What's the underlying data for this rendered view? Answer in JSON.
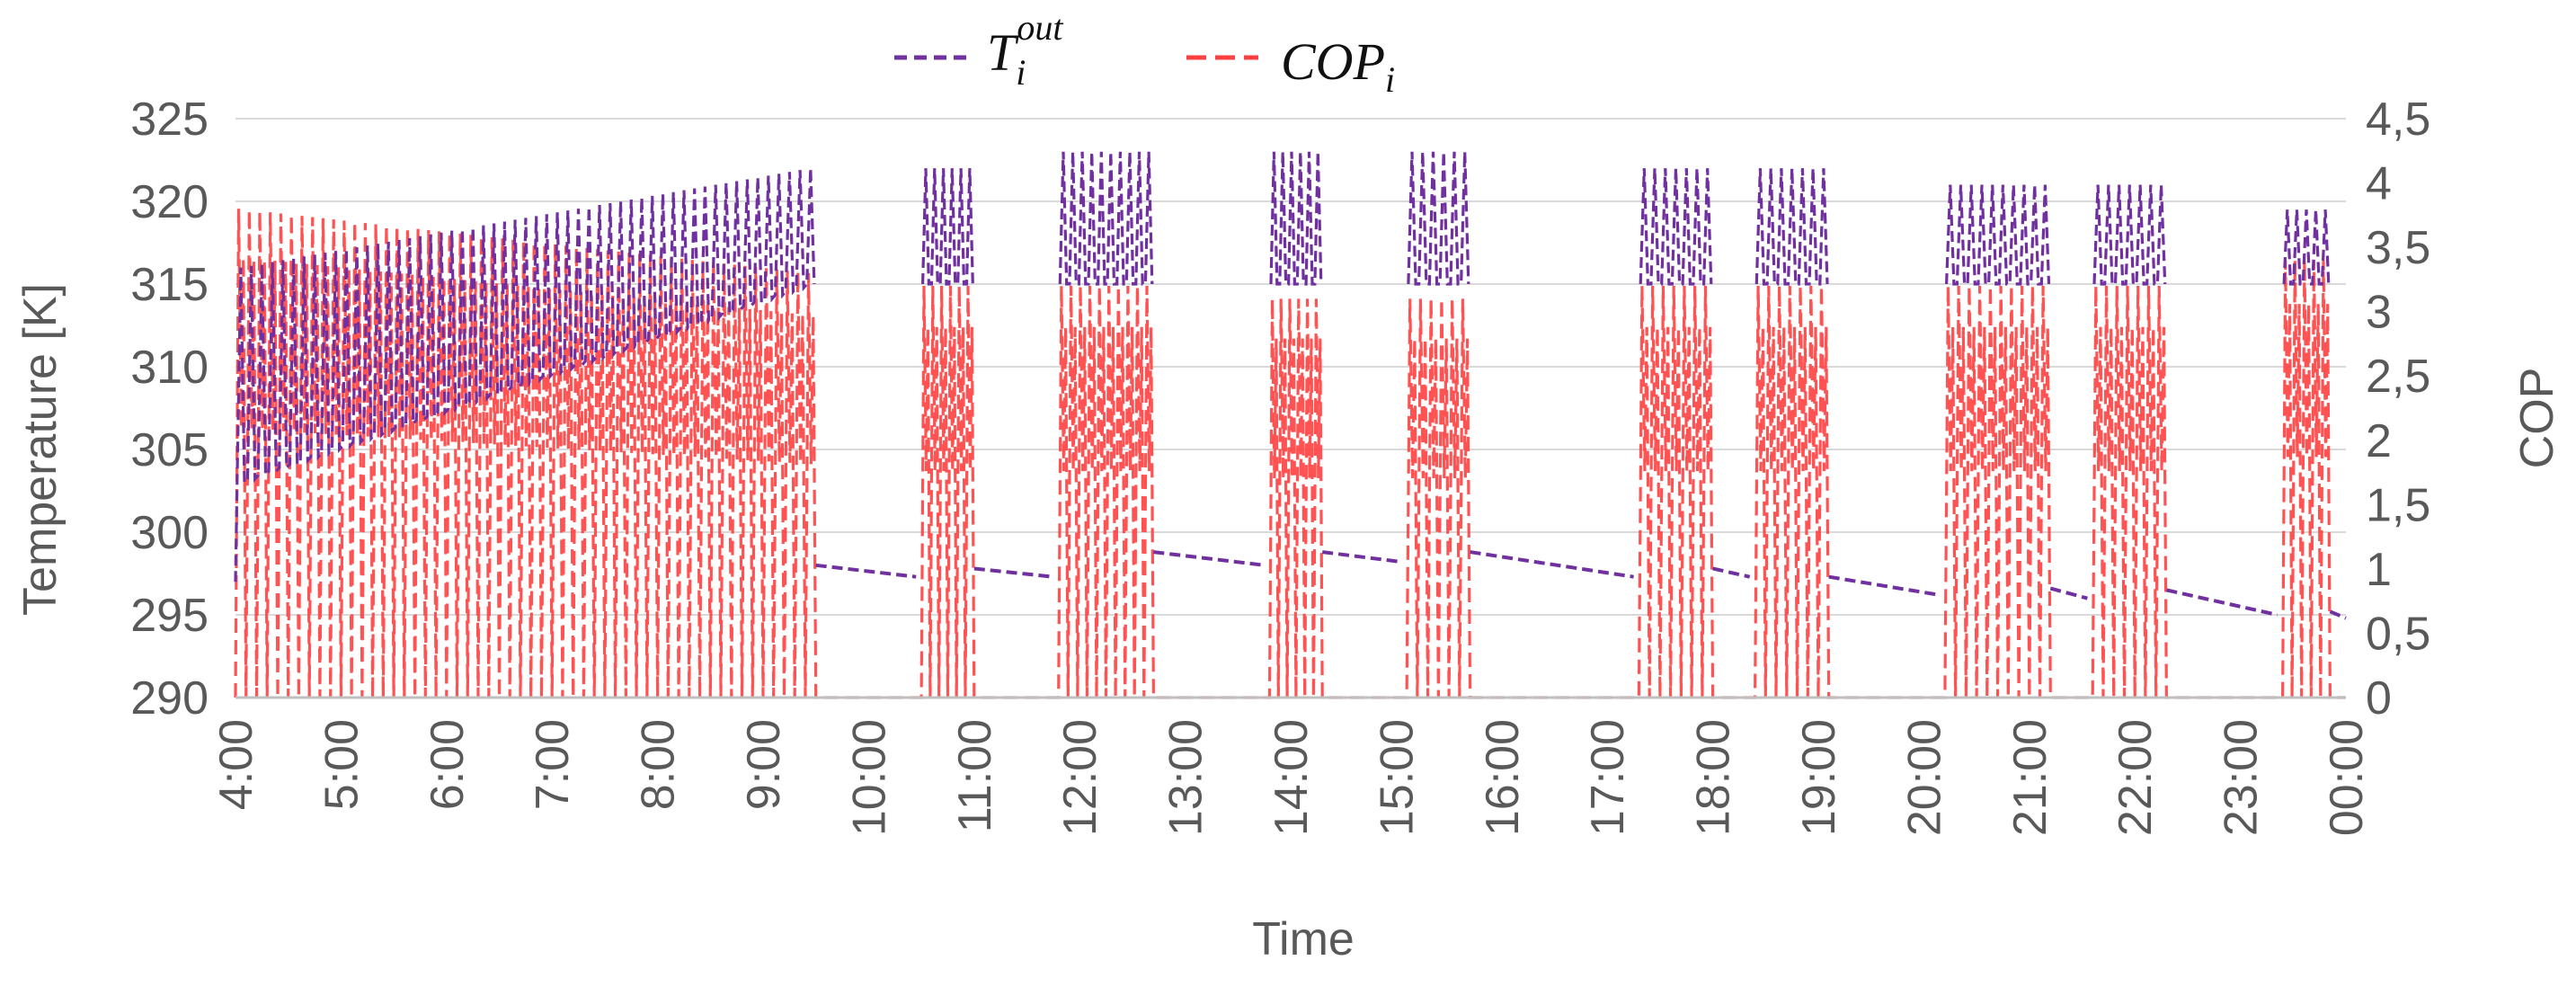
{
  "chart_data": {
    "type": "line",
    "title": "",
    "xlabel": "Time",
    "ylabel": "Temperature [K]",
    "y2label": "COP",
    "x_ticks": [
      "4:00",
      "5:00",
      "6:00",
      "7:00",
      "8:00",
      "9:00",
      "10:00",
      "11:00",
      "12:00",
      "13:00",
      "14:00",
      "15:00",
      "16:00",
      "17:00",
      "18:00",
      "19:00",
      "20:00",
      "21:00",
      "22:00",
      "23:00",
      "00:00"
    ],
    "x_range_hours": [
      4,
      24
    ],
    "ylim": [
      290,
      325
    ],
    "y_ticks": [
      290,
      295,
      300,
      305,
      310,
      315,
      320,
      325
    ],
    "y2lim": [
      0,
      4.5
    ],
    "y2_ticks": [
      "0",
      "0,5",
      "1",
      "1,5",
      "2",
      "2,5",
      "3",
      "3,5",
      "4",
      "4,5"
    ],
    "grid": true,
    "legend_position": "top-center",
    "legend": [
      {
        "base": "T",
        "sub": "i",
        "sup": "out",
        "style": "dashed",
        "color": "#7030a0"
      },
      {
        "base": "COP",
        "sub": "i",
        "style": "dashed",
        "color": "#ff4040"
      }
    ],
    "series": [
      {
        "name": "T_i^out",
        "axis": "left",
        "color": "#7030a0",
        "operating_blocks": [
          {
            "start": 4.0,
            "end": 9.5,
            "low_start": 303,
            "low_end": 315,
            "high_start": 316,
            "high_end": 322,
            "cycles": 55
          },
          {
            "start": 10.5,
            "end": 11.0,
            "low": 315,
            "high": 322,
            "cycles": 6
          },
          {
            "start": 11.8,
            "end": 12.7,
            "low": 315,
            "high": 323,
            "cycles": 10
          },
          {
            "start": 13.8,
            "end": 14.3,
            "low": 315,
            "high": 323,
            "cycles": 6
          },
          {
            "start": 15.1,
            "end": 15.7,
            "low": 315,
            "high": 323,
            "cycles": 6
          },
          {
            "start": 17.3,
            "end": 18.0,
            "low": 315,
            "high": 322,
            "cycles": 7
          },
          {
            "start": 18.4,
            "end": 19.1,
            "low": 315,
            "high": 322,
            "cycles": 7
          },
          {
            "start": 20.2,
            "end": 21.2,
            "low": 315,
            "high": 321,
            "cycles": 10
          },
          {
            "start": 21.6,
            "end": 22.3,
            "low": 315,
            "high": 321,
            "cycles": 7
          },
          {
            "start": 23.4,
            "end": 23.85,
            "low": 315,
            "high": 319.5,
            "cycles": 5
          }
        ],
        "idle_segments": [
          {
            "x": [
              9.5,
              10.45
            ],
            "y": [
              298,
              297.3
            ]
          },
          {
            "x": [
              11.0,
              11.75
            ],
            "y": [
              297.8,
              297.3
            ]
          },
          {
            "x": [
              12.7,
              13.75
            ],
            "y": [
              298.8,
              298.0
            ]
          },
          {
            "x": [
              14.3,
              15.05
            ],
            "y": [
              298.8,
              298.2
            ]
          },
          {
            "x": [
              15.7,
              17.25
            ],
            "y": [
              298.8,
              297.3
            ]
          },
          {
            "x": [
              18.0,
              18.35
            ],
            "y": [
              297.8,
              297.3
            ]
          },
          {
            "x": [
              19.1,
              20.15
            ],
            "y": [
              297.3,
              296.2
            ]
          },
          {
            "x": [
              21.2,
              21.55
            ],
            "y": [
              296.6,
              296.0
            ]
          },
          {
            "x": [
              22.3,
              23.35
            ],
            "y": [
              296.5,
              295.0
            ]
          },
          {
            "x": [
              23.85,
              24.0
            ],
            "y": [
              295.2,
              294.8
            ]
          }
        ]
      },
      {
        "name": "COP_i",
        "axis": "right",
        "color": "#ff4040",
        "operating_blocks": [
          {
            "start": 4.0,
            "end": 9.5,
            "high_start": 3.8,
            "high_end": 3.3,
            "cycles": 55
          },
          {
            "start": 10.5,
            "end": 11.0,
            "high": 3.2,
            "cycles": 6
          },
          {
            "start": 11.8,
            "end": 12.7,
            "high": 3.2,
            "cycles": 10
          },
          {
            "start": 13.8,
            "end": 14.3,
            "high": 3.1,
            "cycles": 6
          },
          {
            "start": 15.1,
            "end": 15.7,
            "high": 3.1,
            "cycles": 6
          },
          {
            "start": 17.3,
            "end": 18.0,
            "high": 3.2,
            "cycles": 7
          },
          {
            "start": 18.4,
            "end": 19.1,
            "high": 3.2,
            "cycles": 7
          },
          {
            "start": 20.2,
            "end": 21.2,
            "high": 3.2,
            "cycles": 10
          },
          {
            "start": 21.6,
            "end": 22.3,
            "high": 3.2,
            "cycles": 7
          },
          {
            "start": 23.4,
            "end": 23.85,
            "high": 3.4,
            "cycles": 5
          }
        ],
        "idle_value": 0
      }
    ]
  }
}
